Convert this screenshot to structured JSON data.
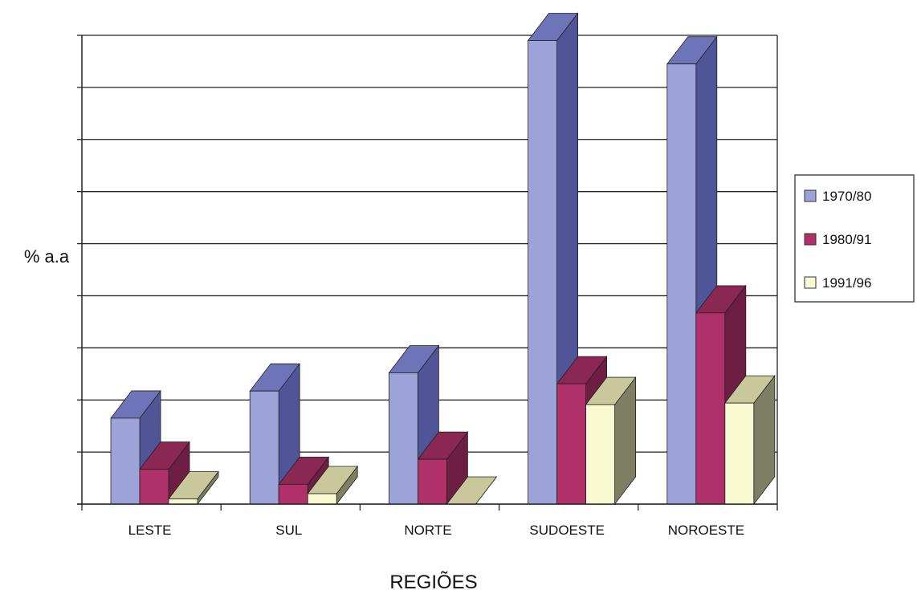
{
  "chart_data": {
    "type": "bar",
    "title": "",
    "xlabel": "REGIÕES",
    "ylabel": "% a.a",
    "categories": [
      "LESTE",
      "SUL",
      "NORTE",
      "SUDOESTE",
      "NOROESTE"
    ],
    "series": [
      {
        "name": "1970/80",
        "values": [
          1.65,
          2.17,
          2.52,
          8.9,
          8.45
        ]
      },
      {
        "name": "1980/91",
        "values": [
          0.67,
          0.38,
          0.86,
          2.31,
          3.67
        ]
      },
      {
        "name": "1991/96",
        "values": [
          0.1,
          0.2,
          0.0,
          1.91,
          1.94
        ]
      }
    ],
    "ylim": [
      0,
      9
    ],
    "y_ticks": [
      0,
      1,
      2,
      3,
      4,
      5,
      6,
      7,
      8,
      9
    ],
    "y_tick_labels_shown": false,
    "grid": true,
    "three_d": true,
    "legend_position": "right",
    "colors": {
      "series_front": [
        "#9ca3d8",
        "#b0306a",
        "#fafad2"
      ],
      "series_side": [
        "#4f5596",
        "#6e1d43",
        "#7e7e62"
      ],
      "series_top": [
        "#6e74b8",
        "#8a2752",
        "#c9c89a"
      ],
      "grid": "#222222",
      "axis": "#222222"
    }
  }
}
